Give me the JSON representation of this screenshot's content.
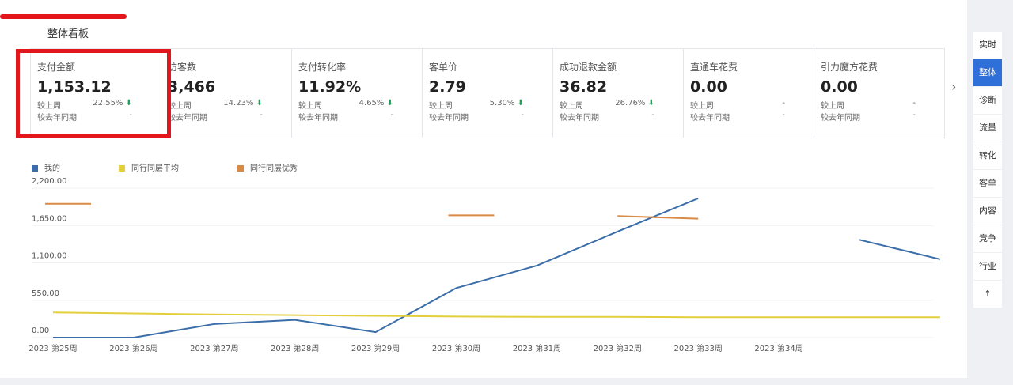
{
  "header": {
    "title": "整体看板"
  },
  "kpis": [
    {
      "label": "支付金额",
      "value": "1,153.12",
      "wow_label": "较上周",
      "wow": "22.55%",
      "yoy_label": "较去年同期",
      "yoy": "-"
    },
    {
      "label": "访客数",
      "value": "3,466",
      "wow_label": "较上周",
      "wow": "14.23%",
      "yoy_label": "较去年同期",
      "yoy": "-"
    },
    {
      "label": "支付转化率",
      "value": "11.92%",
      "wow_label": "较上周",
      "wow": "4.65%",
      "yoy_label": "较去年同期",
      "yoy": "-"
    },
    {
      "label": "客单价",
      "value": "2.79",
      "wow_label": "较上周",
      "wow": "5.30%",
      "yoy_label": "较去年同期",
      "yoy": "-"
    },
    {
      "label": "成功退款金额",
      "value": "36.82",
      "wow_label": "较上周",
      "wow": "26.76%",
      "yoy_label": "较去年同期",
      "yoy": "-"
    },
    {
      "label": "直通车花费",
      "value": "0.00",
      "wow_label": "较上周",
      "wow": "-",
      "yoy_label": "较去年同期",
      "yoy": "-"
    },
    {
      "label": "引力魔方花费",
      "value": "0.00",
      "wow_label": "较上周",
      "wow": "-",
      "yoy_label": "较去年同期",
      "yoy": "-"
    }
  ],
  "sidebar": [
    "实时",
    "整体",
    "诊断",
    "流量",
    "转化",
    "客单",
    "内容",
    "竞争",
    "行业"
  ],
  "sidebar_active": 1,
  "chart_data": {
    "type": "line",
    "categories": [
      "2023 第25周",
      "2023 第26周",
      "2023 第27周",
      "2023 第28周",
      "2023 第29周",
      "2023 第30周",
      "2023 第31周",
      "2023 第32周",
      "2023 第33周",
      "2023 第34周",
      null,
      null
    ],
    "series": [
      {
        "name": "我的",
        "color": "#3b6ea8",
        "values": [
          0,
          0,
          200,
          260,
          80,
          730,
          1060,
          1560,
          2050,
          null,
          1440,
          1153.12
        ]
      },
      {
        "name": "同行同层平均",
        "color": "#e3cf3c",
        "values": [
          370,
          355,
          340,
          330,
          320,
          310,
          305,
          305,
          300,
          300,
          300,
          300
        ]
      },
      {
        "name": "同行同层优秀",
        "color": "#d98b45",
        "values": [
          1970,
          null,
          null,
          null,
          null,
          1800,
          null,
          1790,
          1750,
          null,
          null,
          null
        ]
      }
    ],
    "ylim": [
      0,
      2200
    ],
    "yticks": [
      {
        "value": 0,
        "label": "0.00"
      },
      {
        "value": 550,
        "label": "550.00"
      },
      {
        "value": 1100,
        "label": "1,100.00"
      },
      {
        "value": 1650,
        "label": "1,650.00"
      },
      {
        "value": 2200,
        "label": "2,200.00"
      }
    ],
    "grid": true
  }
}
